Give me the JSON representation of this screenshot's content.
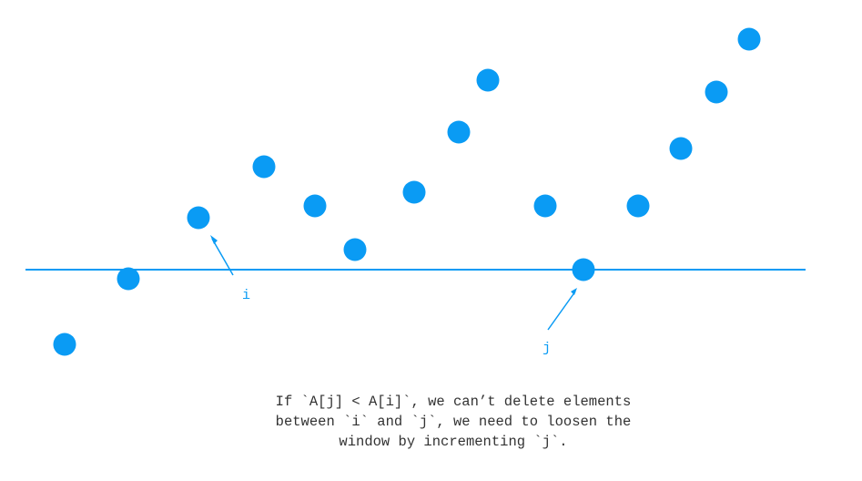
{
  "colors": {
    "accent": "#0A9BF4",
    "caption_text": "#333333"
  },
  "diagram": {
    "label_i": "i",
    "label_j": "j",
    "caption_lines": [
      "If `A[j] < A[i]`, we can’t delete elements",
      "between `i` and `j`, we need to loosen the",
      "window by incrementing `j`."
    ]
  }
}
